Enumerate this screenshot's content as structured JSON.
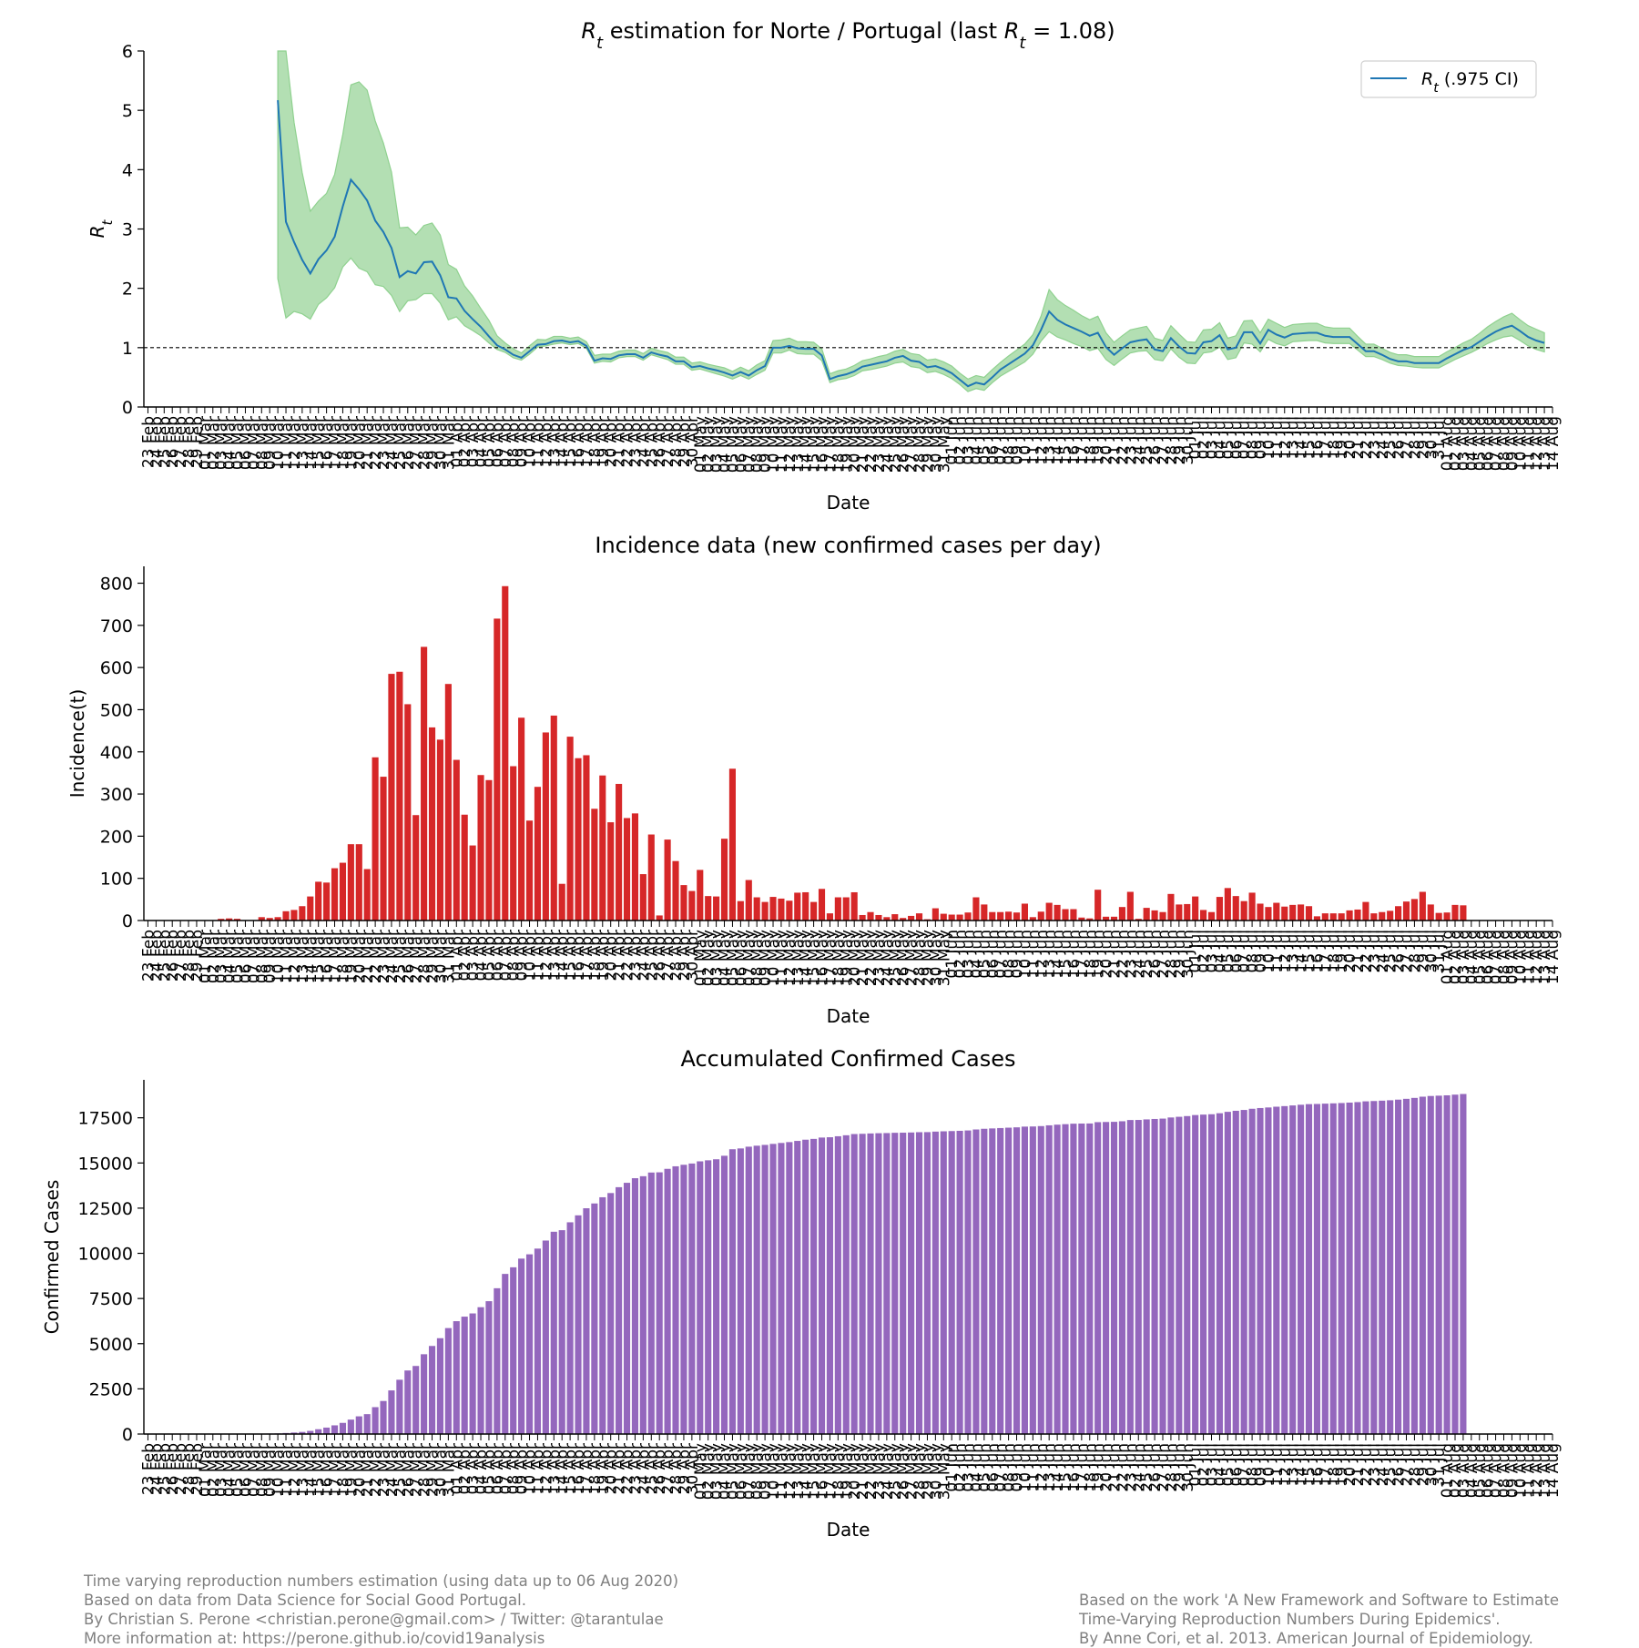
{
  "chart_data": [
    {
      "type": "line",
      "title": "R_t estimation for Norte / Portugal (last R_t = 1.08)",
      "title_parts": {
        "pre": "",
        "var1": "R",
        "sub1": "t",
        "mid": " estimation for Norte / Portugal (last ",
        "var2": "R",
        "sub2": "t",
        "post": " = 1.08)"
      },
      "xlabel": "Date",
      "ylabel": "R_t",
      "ylim": [
        0,
        6
      ],
      "yticks": [
        0,
        1,
        2,
        3,
        4,
        5,
        6
      ],
      "reference_line": 1,
      "legend": {
        "label": "R_t (.975 CI)",
        "var": "R",
        "sub": "t",
        "rest": " (.975 CI)",
        "placement": "top-right"
      },
      "colors": {
        "line": "#1f77b4",
        "band": "#b3dfb3",
        "band_edge": "#8fd18f",
        "reference": "#000000"
      },
      "series": [
        {
          "name": "R_t",
          "start_date": "2020-03-10",
          "values": [
            5.17,
            3.12,
            2.78,
            2.48,
            2.25,
            2.49,
            2.64,
            2.87,
            3.38,
            3.83,
            3.67,
            3.48,
            3.14,
            2.95,
            2.68,
            2.19,
            2.29,
            2.25,
            2.44,
            2.45,
            2.22,
            1.85,
            1.83,
            1.62,
            1.48,
            1.35,
            1.19,
            1.04,
            0.97,
            0.88,
            0.83,
            0.94,
            1.05,
            1.06,
            1.11,
            1.12,
            1.09,
            1.11,
            1.03,
            0.78,
            0.82,
            0.81,
            0.87,
            0.89,
            0.89,
            0.83,
            0.92,
            0.88,
            0.85,
            0.77,
            0.77,
            0.67,
            0.69,
            0.65,
            0.62,
            0.58,
            0.53,
            0.59,
            0.53,
            0.62,
            0.69,
            1.0,
            1.0,
            1.03,
            0.99,
            0.98,
            0.98,
            0.87,
            0.47,
            0.52,
            0.55,
            0.6,
            0.68,
            0.71,
            0.74,
            0.77,
            0.83,
            0.86,
            0.78,
            0.76,
            0.67,
            0.69,
            0.64,
            0.57,
            0.46,
            0.35,
            0.41,
            0.38,
            0.5,
            0.63,
            0.72,
            0.81,
            0.9,
            1.04,
            1.3,
            1.61,
            1.47,
            1.39,
            1.33,
            1.27,
            1.2,
            1.25,
            1.01,
            0.88,
            0.99,
            1.09,
            1.12,
            1.14,
            0.97,
            0.94,
            1.16,
            1.02,
            0.91,
            0.9,
            1.09,
            1.11,
            1.21,
            0.97,
            1.0,
            1.26,
            1.26,
            1.07,
            1.3,
            1.22,
            1.17,
            1.23,
            1.24,
            1.25,
            1.25,
            1.2,
            1.18,
            1.18,
            1.18,
            1.06,
            0.94,
            0.94,
            0.88,
            0.81,
            0.77,
            0.77,
            0.74,
            0.74,
            0.74,
            0.74,
            0.82,
            0.89,
            0.96,
            1.01,
            1.1,
            1.19,
            1.27,
            1.33,
            1.37,
            1.28,
            1.18,
            1.12,
            1.08
          ]
        }
      ],
      "ci_low": [
        2.16,
        1.5,
        1.61,
        1.57,
        1.48,
        1.73,
        1.84,
        2.01,
        2.36,
        2.51,
        2.34,
        2.28,
        2.06,
        2.03,
        1.88,
        1.61,
        1.79,
        1.81,
        1.91,
        1.91,
        1.75,
        1.47,
        1.52,
        1.37,
        1.29,
        1.2,
        1.08,
        0.97,
        0.92,
        0.83,
        0.79,
        0.89,
        1.01,
        1.03,
        1.06,
        1.08,
        1.05,
        1.07,
        0.99,
        0.74,
        0.77,
        0.76,
        0.83,
        0.85,
        0.85,
        0.79,
        0.88,
        0.84,
        0.8,
        0.72,
        0.72,
        0.62,
        0.64,
        0.6,
        0.56,
        0.52,
        0.47,
        0.53,
        0.47,
        0.55,
        0.62,
        0.91,
        0.91,
        0.96,
        0.9,
        0.89,
        0.89,
        0.78,
        0.41,
        0.46,
        0.48,
        0.53,
        0.61,
        0.63,
        0.66,
        0.69,
        0.74,
        0.76,
        0.68,
        0.66,
        0.58,
        0.6,
        0.55,
        0.48,
        0.38,
        0.26,
        0.31,
        0.28,
        0.41,
        0.52,
        0.6,
        0.68,
        0.76,
        0.89,
        1.11,
        1.27,
        1.18,
        1.13,
        1.07,
        1.02,
        0.95,
        0.99,
        0.8,
        0.7,
        0.81,
        0.91,
        0.94,
        0.95,
        0.8,
        0.78,
        0.98,
        0.84,
        0.74,
        0.73,
        0.91,
        0.93,
        1.01,
        0.8,
        0.83,
        1.08,
        1.06,
        0.93,
        1.14,
        1.07,
        1.03,
        1.1,
        1.11,
        1.12,
        1.12,
        1.08,
        1.07,
        1.07,
        1.07,
        0.96,
        0.85,
        0.85,
        0.8,
        0.74,
        0.7,
        0.69,
        0.67,
        0.66,
        0.66,
        0.66,
        0.73,
        0.8,
        0.86,
        0.92,
        0.99,
        1.07,
        1.13,
        1.18,
        1.2,
        1.12,
        1.03,
        0.97,
        0.93
      ],
      "ci_high": [
        8.5,
        6.0,
        4.8,
        3.95,
        3.3,
        3.47,
        3.6,
        3.92,
        4.59,
        5.43,
        5.48,
        5.34,
        4.82,
        4.45,
        3.96,
        3.02,
        3.03,
        2.9,
        3.06,
        3.1,
        2.9,
        2.4,
        2.32,
        2.04,
        1.87,
        1.66,
        1.46,
        1.2,
        1.08,
        0.98,
        0.91,
        1.03,
        1.14,
        1.13,
        1.19,
        1.19,
        1.16,
        1.18,
        1.1,
        0.87,
        0.89,
        0.89,
        0.94,
        0.96,
        0.96,
        0.9,
        0.99,
        0.95,
        0.92,
        0.84,
        0.84,
        0.74,
        0.76,
        0.72,
        0.69,
        0.66,
        0.6,
        0.67,
        0.61,
        0.71,
        0.78,
        1.12,
        1.13,
        1.16,
        1.1,
        1.1,
        1.09,
        0.98,
        0.56,
        0.61,
        0.64,
        0.7,
        0.78,
        0.81,
        0.85,
        0.88,
        0.94,
        0.97,
        0.9,
        0.88,
        0.79,
        0.81,
        0.76,
        0.69,
        0.57,
        0.47,
        0.53,
        0.5,
        0.63,
        0.75,
        0.86,
        0.96,
        1.06,
        1.22,
        1.53,
        1.98,
        1.81,
        1.71,
        1.63,
        1.54,
        1.47,
        1.53,
        1.25,
        1.09,
        1.2,
        1.3,
        1.33,
        1.36,
        1.16,
        1.12,
        1.37,
        1.23,
        1.1,
        1.09,
        1.3,
        1.31,
        1.42,
        1.16,
        1.2,
        1.45,
        1.46,
        1.25,
        1.48,
        1.41,
        1.34,
        1.39,
        1.4,
        1.41,
        1.41,
        1.35,
        1.33,
        1.33,
        1.33,
        1.19,
        1.06,
        1.06,
        0.99,
        0.92,
        0.88,
        0.88,
        0.85,
        0.85,
        0.85,
        0.85,
        0.93,
        1.0,
        1.08,
        1.14,
        1.24,
        1.35,
        1.44,
        1.52,
        1.58,
        1.47,
        1.37,
        1.31,
        1.25
      ]
    },
    {
      "type": "bar",
      "title": "Incidence data (new confirmed cases per day)",
      "xlabel": "Date",
      "ylabel": "Incidence(t)",
      "ylim": [
        0,
        840
      ],
      "yticks": [
        0,
        100,
        200,
        300,
        400,
        500,
        600,
        700,
        800
      ],
      "colors": {
        "bar": "#d62728"
      },
      "series": [
        {
          "name": "Incidence(t)",
          "start_date": "2020-03-01",
          "values": [
            0,
            0,
            4,
            5,
            4,
            1,
            0,
            8,
            6,
            8,
            22,
            25,
            34,
            57,
            92,
            90,
            124,
            137,
            181,
            181,
            122,
            387,
            341,
            585,
            590,
            513,
            250,
            649,
            458,
            429,
            561,
            381,
            251,
            178,
            345,
            333,
            716,
            793,
            366,
            481,
            237,
            317,
            446,
            486,
            87,
            436,
            385,
            392,
            265,
            344,
            233,
            324,
            243,
            254,
            110,
            204,
            12,
            192,
            141,
            84,
            70,
            120,
            58,
            57,
            194,
            360,
            46,
            96,
            55,
            44,
            56,
            52,
            47,
            66,
            67,
            44,
            75,
            17,
            55,
            55,
            67,
            13,
            20,
            13,
            8,
            15,
            6,
            11,
            17,
            3,
            29,
            16,
            14,
            14,
            19,
            55,
            38,
            20,
            20,
            21,
            19,
            40,
            8,
            21,
            42,
            37,
            27,
            27,
            7,
            5,
            73,
            9,
            9,
            32,
            68,
            4,
            30,
            24,
            20,
            63,
            38,
            39,
            57,
            25,
            20,
            56,
            77,
            58,
            46,
            66,
            40,
            32,
            42,
            33,
            37,
            38,
            34,
            10,
            17,
            17,
            17,
            24,
            26,
            44,
            17,
            20,
            23,
            34,
            45,
            51,
            68,
            38,
            18,
            19,
            37,
            36
          ]
        }
      ]
    },
    {
      "type": "bar",
      "title": "Accumulated Confirmed Cases",
      "xlabel": "Date",
      "ylabel": "Confirmed Cases",
      "ylim": [
        0,
        19600
      ],
      "yticks": [
        0,
        2500,
        5000,
        7500,
        10000,
        12500,
        15000,
        17500
      ],
      "colors": {
        "bar": "#9467bd"
      },
      "series": [
        {
          "name": "Confirmed Cases",
          "start_date": "2020-03-01",
          "values": [
            0,
            0,
            4,
            9,
            13,
            14,
            14,
            22,
            28,
            36,
            58,
            83,
            117,
            174,
            266,
            356,
            480,
            617,
            798,
            979,
            1101,
            1488,
            1829,
            2414,
            3004,
            3517,
            3767,
            4416,
            4874,
            5303,
            5864,
            6245,
            6496,
            6674,
            7019,
            7352,
            8068,
            8861,
            9227,
            9708,
            9945,
            10262,
            10708,
            11194,
            11281,
            11717,
            12102,
            12494,
            12759,
            13103,
            13336,
            13660,
            13903,
            14157,
            14267,
            14471,
            14483,
            14675,
            14816,
            14900,
            14970,
            15090,
            15148,
            15205,
            15399,
            15759,
            15805,
            15901,
            15956,
            16000,
            16056,
            16108,
            16155,
            16221,
            16288,
            16332,
            16407,
            16424,
            16479,
            16534,
            16601,
            16614,
            16634,
            16647,
            16655,
            16670,
            16676,
            16687,
            16704,
            16707,
            16736,
            16752,
            16766,
            16780,
            16799,
            16854,
            16892,
            16912,
            16932,
            16953,
            16972,
            17012,
            17020,
            17041,
            17083,
            17120,
            17147,
            17174,
            17181,
            17186,
            17259,
            17268,
            17277,
            17309,
            17377,
            17381,
            17411,
            17435,
            17455,
            17518,
            17556,
            17595,
            17652,
            17677,
            17697,
            17753,
            17830,
            17888,
            17934,
            18000,
            18040,
            18072,
            18114,
            18147,
            18184,
            18222,
            18256,
            18266,
            18283,
            18300,
            18317,
            18341,
            18367,
            18411,
            18428,
            18448,
            18471,
            18505,
            18550,
            18601,
            18669,
            18707,
            18725,
            18744,
            18781,
            18817
          ]
        }
      ]
    }
  ],
  "axis": {
    "start_date": "2020-02-23",
    "tick_count": 174,
    "months": [
      "Feb",
      "Mar",
      "Apr",
      "May",
      "Jun",
      "Jul",
      "Aug"
    ]
  },
  "footer": {
    "left": [
      "Time varying reproduction numbers estimation (using data up to 06 Aug 2020)",
      "Based on data from Data Science for Social Good Portugal.",
      "By Christian S. Perone <christian.perone@gmail.com> / Twitter: @tarantulae",
      "More information at: https://perone.github.io/covid19analysis"
    ],
    "right": [
      "Based on the work 'A New Framework and Software to Estimate",
      "Time-Varying Reproduction Numbers During Epidemics'.",
      "By Anne Cori, et al. 2013. American Journal of Epidemiology."
    ]
  }
}
